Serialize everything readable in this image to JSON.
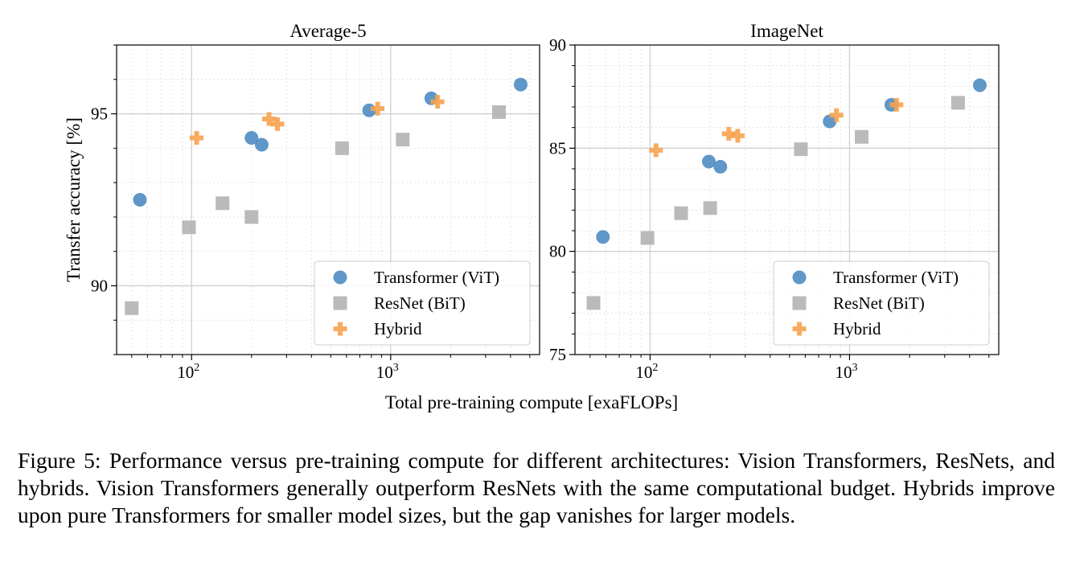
{
  "chart_data": [
    {
      "type": "scatter",
      "title": "Average-5",
      "ylabel": "Transfer accuracy [%]",
      "xscale": "log",
      "xlim": [
        42,
        5600
      ],
      "ylim": [
        88,
        97
      ],
      "yticks": [
        90,
        95
      ],
      "xticks": [
        {
          "value": 100,
          "base": "10",
          "exp": "2"
        },
        {
          "value": 1000,
          "base": "10",
          "exp": "3"
        }
      ],
      "grid": true,
      "legend_position": "lower-right",
      "series": [
        {
          "name": "Transformer (ViT)",
          "marker": "circle",
          "color": "#4e8cc2",
          "points": [
            [
              55,
              92.5
            ],
            [
              200,
              94.3
            ],
            [
              225,
              94.1
            ],
            [
              780,
              95.1
            ],
            [
              1600,
              95.45
            ],
            [
              4500,
              95.85
            ]
          ]
        },
        {
          "name": "ResNet (BiT)",
          "marker": "square",
          "color": "#b3b3b3",
          "points": [
            [
              50,
              89.35
            ],
            [
              97,
              91.7
            ],
            [
              143,
              92.4
            ],
            [
              200,
              92.0
            ],
            [
              570,
              94.0
            ],
            [
              1150,
              94.25
            ],
            [
              3500,
              95.05
            ]
          ]
        },
        {
          "name": "Hybrid",
          "marker": "plus",
          "color": "#f7a24c",
          "points": [
            [
              106,
              94.3
            ],
            [
              245,
              94.85
            ],
            [
              270,
              94.7
            ],
            [
              860,
              95.15
            ],
            [
              1720,
              95.35
            ]
          ]
        }
      ]
    },
    {
      "type": "scatter",
      "title": "ImageNet",
      "ylabel": "",
      "xscale": "log",
      "xlim": [
        42,
        5600
      ],
      "ylim": [
        75,
        90
      ],
      "yticks": [
        75,
        80,
        85,
        90
      ],
      "xticks": [
        {
          "value": 100,
          "base": "10",
          "exp": "2"
        },
        {
          "value": 1000,
          "base": "10",
          "exp": "3"
        }
      ],
      "grid": true,
      "legend_position": "lower-right",
      "series": [
        {
          "name": "Transformer (ViT)",
          "marker": "circle",
          "color": "#4e8cc2",
          "points": [
            [
              58,
              80.7
            ],
            [
              197,
              84.35
            ],
            [
              225,
              84.1
            ],
            [
              795,
              86.3
            ],
            [
              1620,
              87.1
            ],
            [
              4500,
              88.05
            ]
          ]
        },
        {
          "name": "ResNet (BiT)",
          "marker": "square",
          "color": "#b3b3b3",
          "points": [
            [
              52,
              77.5
            ],
            [
              97,
              80.65
            ],
            [
              143,
              81.85
            ],
            [
              200,
              82.1
            ],
            [
              570,
              84.95
            ],
            [
              1150,
              85.55
            ],
            [
              3500,
              87.2
            ]
          ]
        },
        {
          "name": "Hybrid",
          "marker": "plus",
          "color": "#f7a24c",
          "points": [
            [
              107,
              84.9
            ],
            [
              248,
              85.7
            ],
            [
              275,
              85.6
            ],
            [
              860,
              86.6
            ],
            [
              1720,
              87.1
            ]
          ]
        }
      ]
    }
  ],
  "shared_xlabel": "Total pre-training compute [exaFLOPs]",
  "caption": "Figure 5: Performance versus pre-training compute for different architectures: Vision Transformers, ResNets, and hybrids. Vision Transformers generally outperform ResNets with the same computational budget. Hybrids improve upon pure Transformers for smaller model sizes, but the gap vanishes for larger models."
}
